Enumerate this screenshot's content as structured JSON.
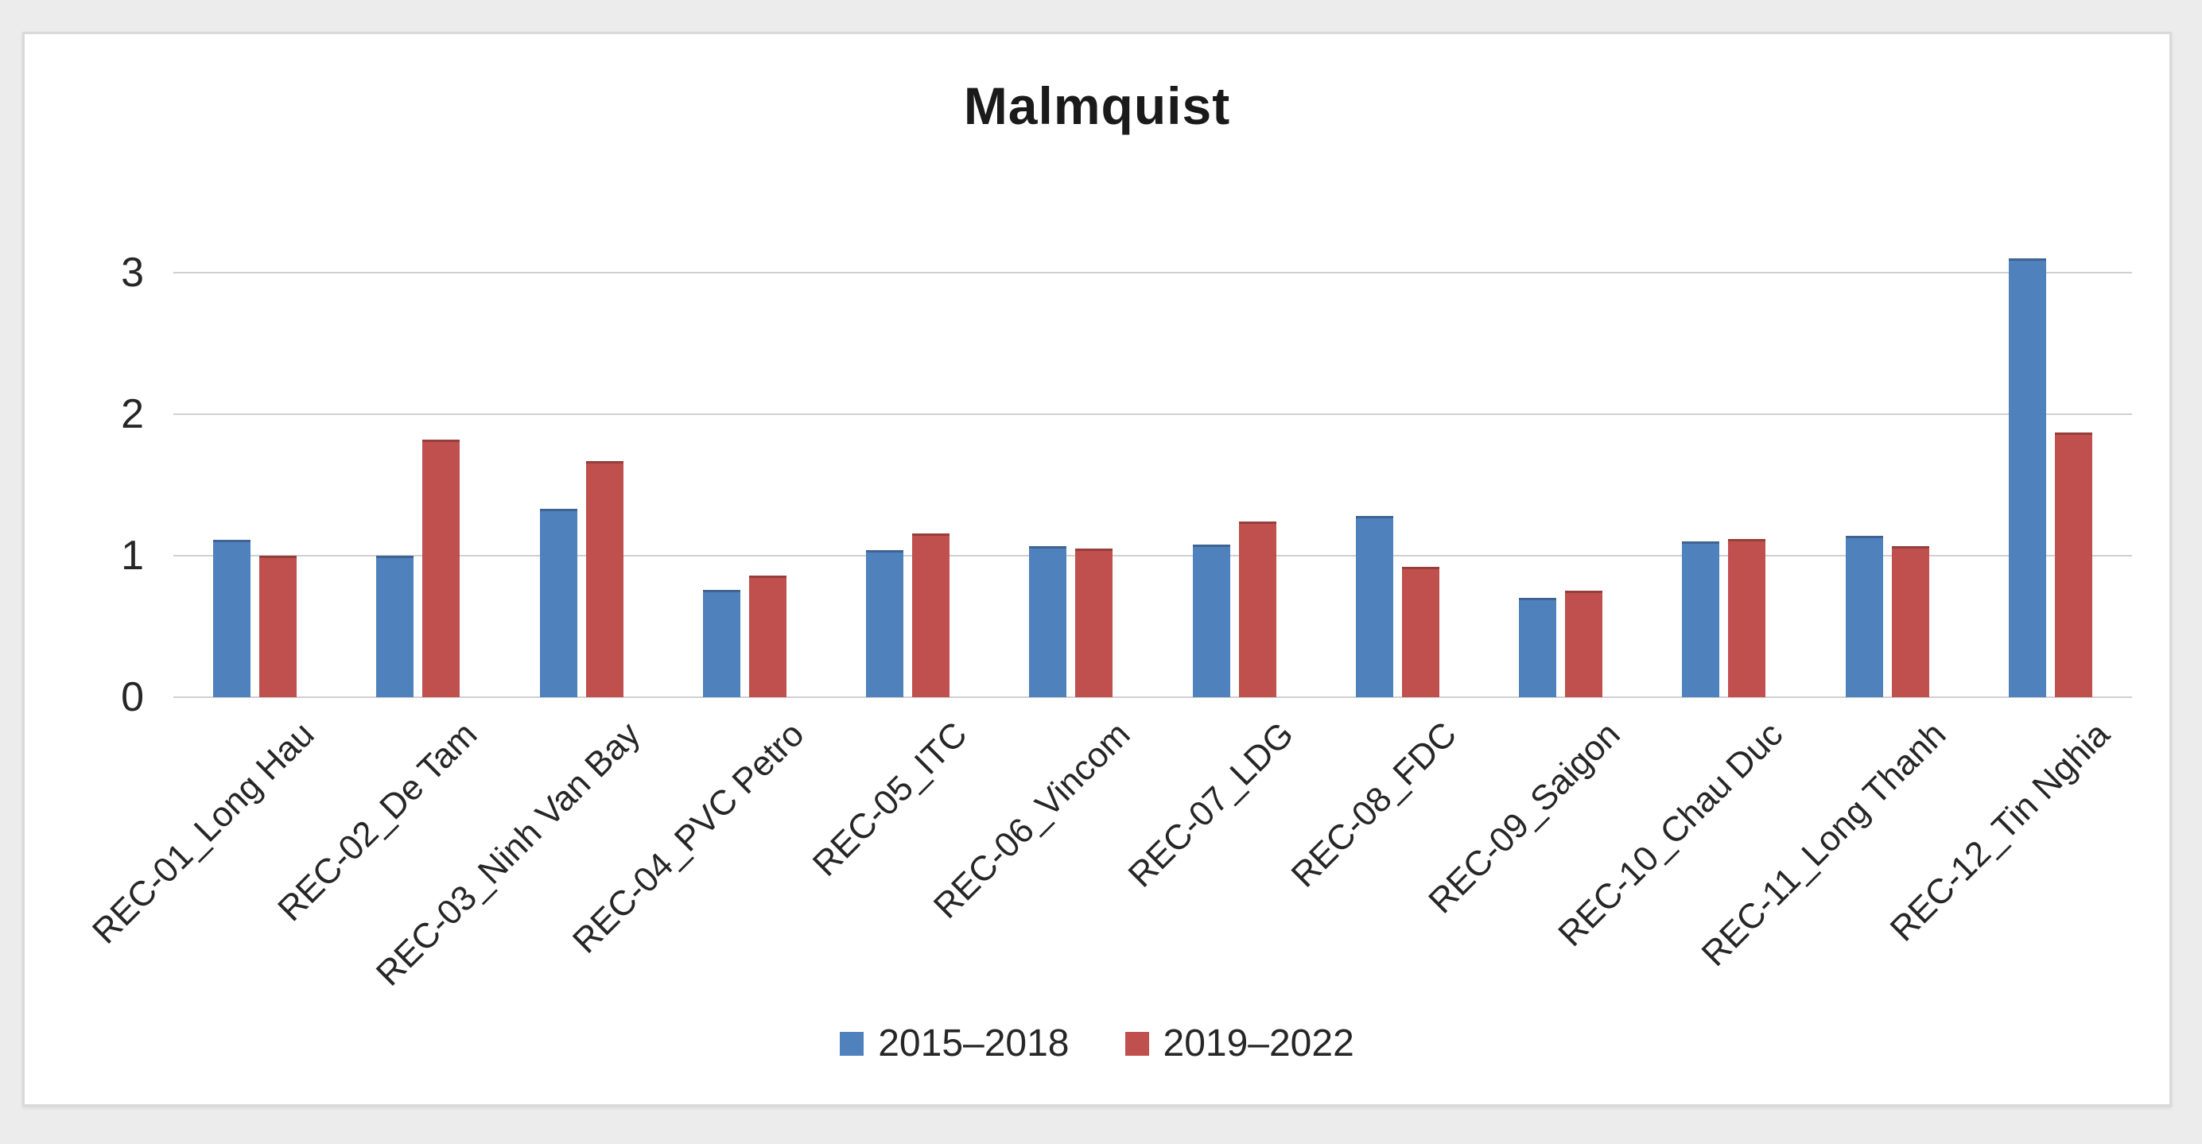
{
  "window": {
    "outer_background": "#ececec",
    "canvas_background": "#ffffff",
    "canvas_border_color": "#d9d9d9"
  },
  "chart_data": {
    "type": "bar",
    "title": "Malmquist",
    "xlabel": "",
    "ylabel": "",
    "categories": [
      "REC-01_Long Hau",
      "REC-02_De Tam",
      "REC-03_Ninh Van Bay",
      "REC-04_PVC Petro",
      "REC-05_ITC",
      "REC-06_Vincom",
      "REC-07_LDG",
      "REC-08_FDC",
      "REC-09_Saigon",
      "REC-10_Chau Duc",
      "REC-11_Long Thanh",
      "REC-12_Tin Nghia"
    ],
    "series": [
      {
        "name": "2015–2018",
        "color": "#4F81BD",
        "values": [
          1.11,
          1.0,
          1.33,
          0.76,
          1.04,
          1.07,
          1.08,
          1.28,
          0.7,
          1.1,
          1.14,
          3.1
        ]
      },
      {
        "name": "2019–2022",
        "color": "#C0504D",
        "values": [
          1.0,
          1.82,
          1.67,
          0.86,
          1.16,
          1.05,
          1.24,
          0.92,
          0.75,
          1.12,
          1.07,
          1.87
        ]
      }
    ],
    "ylim": [
      0,
      3.34
    ],
    "yticks": [
      0,
      1,
      2,
      3
    ],
    "grid": true,
    "gridline_color": "#d0d0d0",
    "legend_position": "bottom",
    "x_label_rotation_deg": -45
  }
}
